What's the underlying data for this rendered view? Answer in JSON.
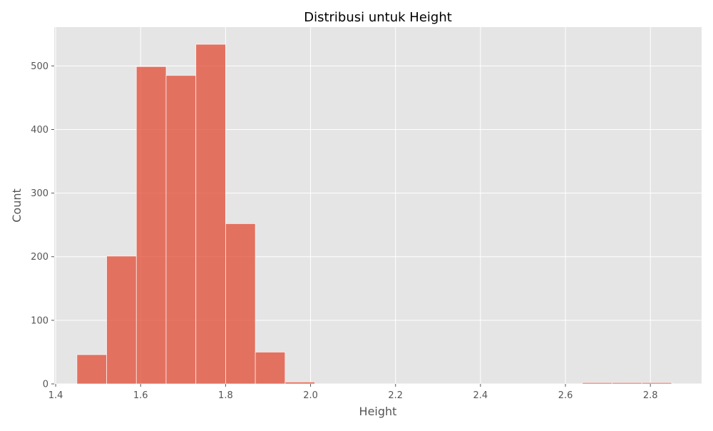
{
  "chart_data": {
    "type": "bar",
    "title": "Distribusi untuk Height",
    "xlabel": "Height",
    "ylabel": "Count",
    "xlim": [
      1.3965,
      2.9205
    ],
    "ylim": [
      0,
      561
    ],
    "xticks": [
      1.4,
      1.6,
      1.8,
      2.0,
      2.2,
      2.4,
      2.6,
      2.8
    ],
    "xtick_labels": [
      "1.4",
      "1.6",
      "1.8",
      "2.0",
      "2.2",
      "2.4",
      "2.6",
      "2.8"
    ],
    "yticks": [
      0,
      100,
      200,
      300,
      400,
      500
    ],
    "ytick_labels": [
      "0",
      "100",
      "200",
      "300",
      "400",
      "500"
    ],
    "grid": true,
    "bin_edges": [
      1.45,
      1.52,
      1.59,
      1.66,
      1.73,
      1.8,
      1.87,
      1.94,
      2.01,
      2.08,
      2.15,
      2.22,
      2.29,
      2.36,
      2.43,
      2.5,
      2.57,
      2.64,
      2.71,
      2.78,
      2.85
    ],
    "counts": [
      46,
      201,
      499,
      485,
      534,
      252,
      50,
      3,
      0,
      0,
      0,
      0,
      0,
      0,
      0,
      0,
      0,
      2,
      2,
      2
    ],
    "bar_color": "#e24a33",
    "background_color": "#e5e5e5",
    "grid_color": "#ffffff"
  }
}
